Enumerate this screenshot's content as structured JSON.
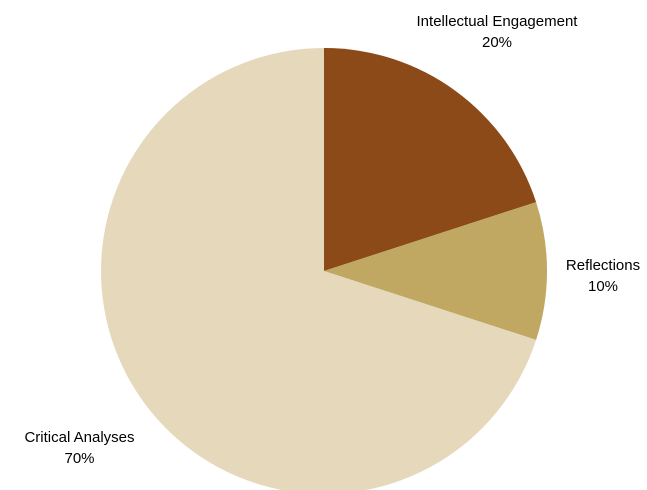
{
  "chart_data": {
    "type": "pie",
    "title": "",
    "slices": [
      {
        "label": "Intellectual Engagement",
        "value": 20,
        "percent_label": "20%",
        "color": "#8B4A17"
      },
      {
        "label": "Reflections",
        "value": 10,
        "percent_label": "10%",
        "color": "#C0A862"
      },
      {
        "label": "Critical Analyses",
        "value": 70,
        "percent_label": "70%",
        "color": "#E6D8BA"
      }
    ],
    "start_angle": "12 o'clock",
    "direction": "clockwise",
    "legend": "none"
  }
}
